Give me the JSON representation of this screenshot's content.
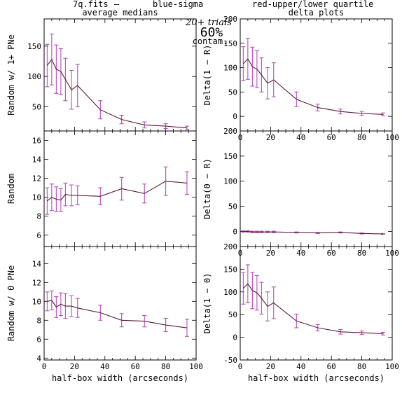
{
  "header": {
    "file_label": "7q.fits",
    "dash": "—",
    "blue_label": "blue-sigma",
    "red_label": "red-upper/lower quartile",
    "trials_label": "20+ trials",
    "contam_value": "60%",
    "contam_label": "contam.",
    "blue_color": "#3b3bd9",
    "red_color": "#e8607a",
    "line_color": "#5a1a3a",
    "err_color": "#b84fb8"
  },
  "chart_data": [
    {
      "id": "p0",
      "type": "line",
      "title": "average medians",
      "xlabel": "",
      "ylabel": "Random w/ 1+ PNe",
      "xlim": [
        0,
        100
      ],
      "ylim": [
        10,
        195
      ],
      "xticks": [
        0,
        20,
        40,
        60,
        80,
        100
      ],
      "yticks": [
        50,
        100,
        150
      ],
      "show_xticklabels": false,
      "x": [
        2,
        5,
        8,
        11,
        14,
        18,
        22,
        37,
        51,
        66,
        80,
        94
      ],
      "y": [
        118,
        128,
        112,
        108,
        95,
        78,
        85,
        45,
        29,
        20,
        18,
        15
      ],
      "err": [
        35,
        42,
        40,
        38,
        35,
        32,
        35,
        15,
        7,
        5,
        4,
        3
      ]
    },
    {
      "id": "p1",
      "type": "line",
      "title": "delta plots",
      "xlabel": "",
      "ylabel": "Delta(1 − R)",
      "xlim": [
        0,
        100
      ],
      "ylim": [
        -30,
        200
      ],
      "xticks": [
        0,
        20,
        40,
        60,
        80,
        100
      ],
      "yticks": [
        0,
        50,
        100,
        150,
        200
      ],
      "show_xticklabels": true,
      "x": [
        2,
        5,
        8,
        11,
        14,
        18,
        22,
        37,
        51,
        66,
        80,
        94
      ],
      "y": [
        108,
        118,
        102,
        97,
        85,
        68,
        75,
        35,
        18,
        10,
        6,
        4
      ],
      "err": [
        35,
        42,
        40,
        38,
        35,
        32,
        35,
        15,
        7,
        5,
        4,
        3
      ]
    },
    {
      "id": "p2",
      "type": "line",
      "title": "",
      "xlabel": "",
      "ylabel": "Random",
      "xlim": [
        0,
        100
      ],
      "ylim": [
        4.8,
        17
      ],
      "xticks": [
        0,
        20,
        40,
        60,
        80,
        100
      ],
      "yticks": [
        6,
        8,
        10,
        12,
        14,
        16
      ],
      "show_xticklabels": false,
      "x": [
        2,
        5,
        8,
        11,
        14,
        18,
        22,
        37,
        51,
        66,
        80,
        94
      ],
      "y": [
        9.6,
        10.0,
        9.8,
        9.7,
        10.3,
        10.2,
        10.2,
        10.1,
        10.9,
        10.4,
        11.7,
        11.5
      ],
      "err": [
        1.4,
        1.4,
        1.3,
        1.2,
        1.2,
        1.1,
        1.0,
        0.9,
        1.2,
        1.0,
        1.5,
        1.2
      ]
    },
    {
      "id": "p3",
      "type": "line",
      "title": "",
      "xlabel": "",
      "ylabel": "Delta(0 − R)",
      "xlim": [
        0,
        100
      ],
      "ylim": [
        -30,
        200
      ],
      "xticks": [
        0,
        20,
        40,
        60,
        80,
        100
      ],
      "yticks": [
        0,
        50,
        100,
        150,
        200
      ],
      "show_xticklabels": true,
      "x": [
        2,
        5,
        8,
        11,
        14,
        18,
        22,
        37,
        51,
        66,
        80,
        94
      ],
      "y": [
        0,
        0,
        -1,
        -1,
        -1,
        -1,
        -1,
        -2,
        -3,
        -2,
        -4,
        -5
      ],
      "err": [
        1.5,
        1.5,
        1.5,
        1.5,
        1.5,
        1.5,
        1.5,
        1,
        1,
        1,
        1,
        1
      ]
    },
    {
      "id": "p4",
      "type": "line",
      "title": "",
      "xlabel": "half-box width (arcseconds)",
      "ylabel": "Random w/ 0 PNe",
      "xlim": [
        0,
        100
      ],
      "ylim": [
        3.8,
        15.8
      ],
      "xticks": [
        0,
        20,
        40,
        60,
        80,
        100
      ],
      "yticks": [
        4,
        6,
        8,
        10,
        12,
        14
      ],
      "show_xticklabels": true,
      "x": [
        2,
        5,
        8,
        11,
        14,
        18,
        22,
        37,
        51,
        66,
        80,
        94
      ],
      "y": [
        10.0,
        10.1,
        9.4,
        9.7,
        9.5,
        9.5,
        9.3,
        8.8,
        8.0,
        7.9,
        7.5,
        7.2
      ],
      "err": [
        1.0,
        1.0,
        1.1,
        1.2,
        1.3,
        1.1,
        1.0,
        0.8,
        0.7,
        0.6,
        0.7,
        0.9
      ]
    },
    {
      "id": "p5",
      "type": "line",
      "title": "",
      "xlabel": "half-box width (arcseconds)",
      "ylabel": "Delta(1 − 0)",
      "xlim": [
        0,
        100
      ],
      "ylim": [
        -50,
        200
      ],
      "xticks": [
        0,
        20,
        40,
        60,
        80,
        100
      ],
      "yticks": [
        -50,
        0,
        50,
        100,
        150,
        200
      ],
      "show_xticklabels": true,
      "x": [
        2,
        5,
        8,
        11,
        14,
        18,
        22,
        37,
        51,
        66,
        80,
        94
      ],
      "y": [
        108,
        118,
        103,
        98,
        86,
        68,
        76,
        36,
        21,
        12,
        10,
        8
      ],
      "err": [
        35,
        42,
        40,
        38,
        35,
        32,
        35,
        15,
        7,
        5,
        4,
        3
      ]
    }
  ]
}
